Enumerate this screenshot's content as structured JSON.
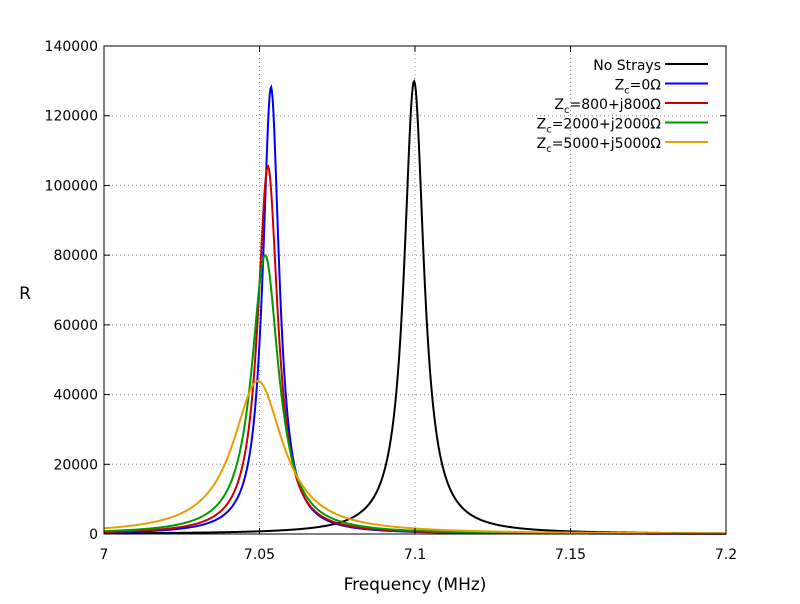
{
  "chart_data": {
    "type": "line",
    "title": "",
    "xlabel": "Frequency (MHz)",
    "ylabel": "R",
    "xlim": [
      7.0,
      7.2
    ],
    "ylim": [
      0,
      140000
    ],
    "xticks": [
      "7",
      "7.05",
      "7.1",
      "7.15",
      "7.2"
    ],
    "xtick_values": [
      7.0,
      7.05,
      7.1,
      7.15,
      7.2
    ],
    "yticks": [
      "0",
      "20000",
      "40000",
      "60000",
      "80000",
      "100000",
      "120000",
      "140000"
    ],
    "ytick_values": [
      0,
      20000,
      40000,
      60000,
      80000,
      100000,
      120000,
      140000
    ],
    "grid": true,
    "legend_placement": "top-right",
    "series": [
      {
        "name": "No Strays",
        "label_main": "No Strays",
        "label_sub": "",
        "label_rest": "",
        "color": "#000000",
        "peak_frequency": 7.0997,
        "peak_value": 129900,
        "fwhm": 0.0077
      },
      {
        "name": "Zc=0Ω",
        "label_main": "Z",
        "label_sub": "c",
        "label_rest": "=0Ω",
        "color": "#0000ff",
        "peak_frequency": 7.0537,
        "peak_value": 128200,
        "fwhm": 0.0064
      },
      {
        "name": "Zc=800+j800Ω",
        "label_main": "Z",
        "label_sub": "c",
        "label_rest": "=800+j800Ω",
        "color": "#cc0000",
        "peak_frequency": 7.0527,
        "peak_value": 105500,
        "fwhm": 0.0078
      },
      {
        "name": "Zc=2000+j2000Ω",
        "label_main": "Z",
        "label_sub": "c",
        "label_rest": "=2000+j2000Ω",
        "color": "#009900",
        "peak_frequency": 7.0518,
        "peak_value": 80000,
        "fwhm": 0.0105
      },
      {
        "name": "Zc=5000+j5000Ω",
        "label_main": "Z",
        "label_sub": "c",
        "label_rest": "=5000+j5000Ω",
        "color": "#e69f00",
        "peak_frequency": 7.0495,
        "peak_value": 43900,
        "fwhm": 0.0195
      }
    ]
  }
}
